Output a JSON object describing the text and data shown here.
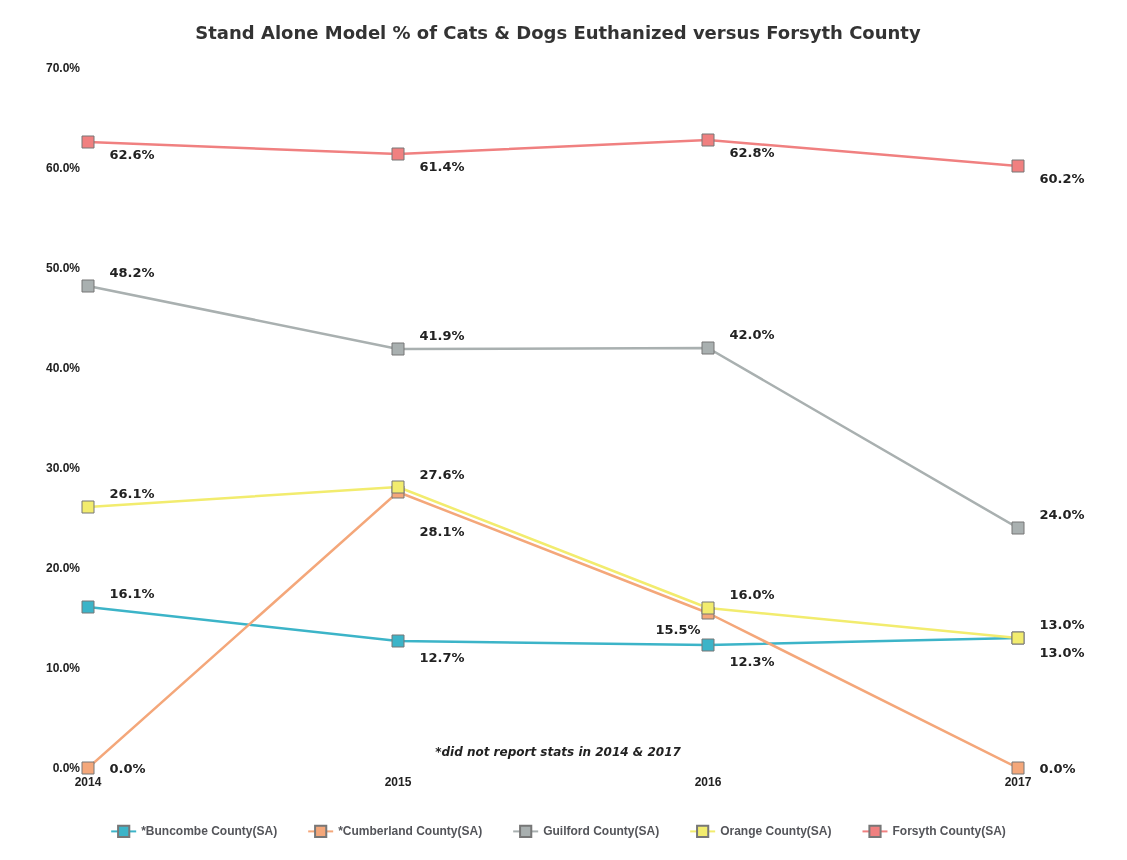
{
  "chart_data": {
    "type": "line",
    "title": "Stand Alone Model % of Cats & Dogs Euthanized versus Forsyth County",
    "categories": [
      "2014",
      "2015",
      "2016",
      "2017"
    ],
    "series": [
      {
        "name": "*Buncombe County(SA)",
        "color": "#3cb4c8",
        "values": [
          16.1,
          12.7,
          12.3,
          13.0
        ],
        "value_labels": [
          "16.1%",
          "12.7%",
          "12.3%",
          "13.0%"
        ]
      },
      {
        "name": "*Cumberland County(SA)",
        "color": "#f4a77a",
        "values": [
          0.0,
          27.6,
          15.5,
          0.0
        ],
        "value_labels": [
          "0.0%",
          "27.6%",
          "15.5%",
          "0.0%"
        ]
      },
      {
        "name": "Guilford County(SA)",
        "color": "#a9b0b0",
        "values": [
          48.2,
          41.9,
          42.0,
          24.0
        ],
        "value_labels": [
          "48.2%",
          "41.9%",
          "42.0%",
          "24.0%"
        ]
      },
      {
        "name": "Orange County(SA)",
        "color": "#f2ec6e",
        "values": [
          26.1,
          28.1,
          16.0,
          13.0
        ],
        "value_labels": [
          "26.1%",
          "28.1%",
          "16.0%",
          "13.0%"
        ]
      },
      {
        "name": "Forsyth County(SA)",
        "color": "#f08080",
        "values": [
          62.6,
          61.4,
          62.8,
          60.2
        ],
        "value_labels": [
          "62.6%",
          "61.4%",
          "62.8%",
          "60.2%"
        ]
      }
    ],
    "ylim": [
      0,
      70
    ],
    "yticks": [
      {
        "value": 0,
        "label": "0.0%"
      },
      {
        "value": 10,
        "label": "10.0%"
      },
      {
        "value": 20,
        "label": "20.0%"
      },
      {
        "value": 30,
        "label": "30.0%"
      },
      {
        "value": 40,
        "label": "40.0%"
      },
      {
        "value": 50,
        "label": "50.0%"
      },
      {
        "value": 60,
        "label": "60.0%"
      },
      {
        "value": 70,
        "label": "70.0%"
      }
    ],
    "grid": false,
    "legend": "bottom",
    "marker": "square",
    "line_style": "solid",
    "annotations": [
      "*did not report stats in 2014 & 2017"
    ]
  }
}
